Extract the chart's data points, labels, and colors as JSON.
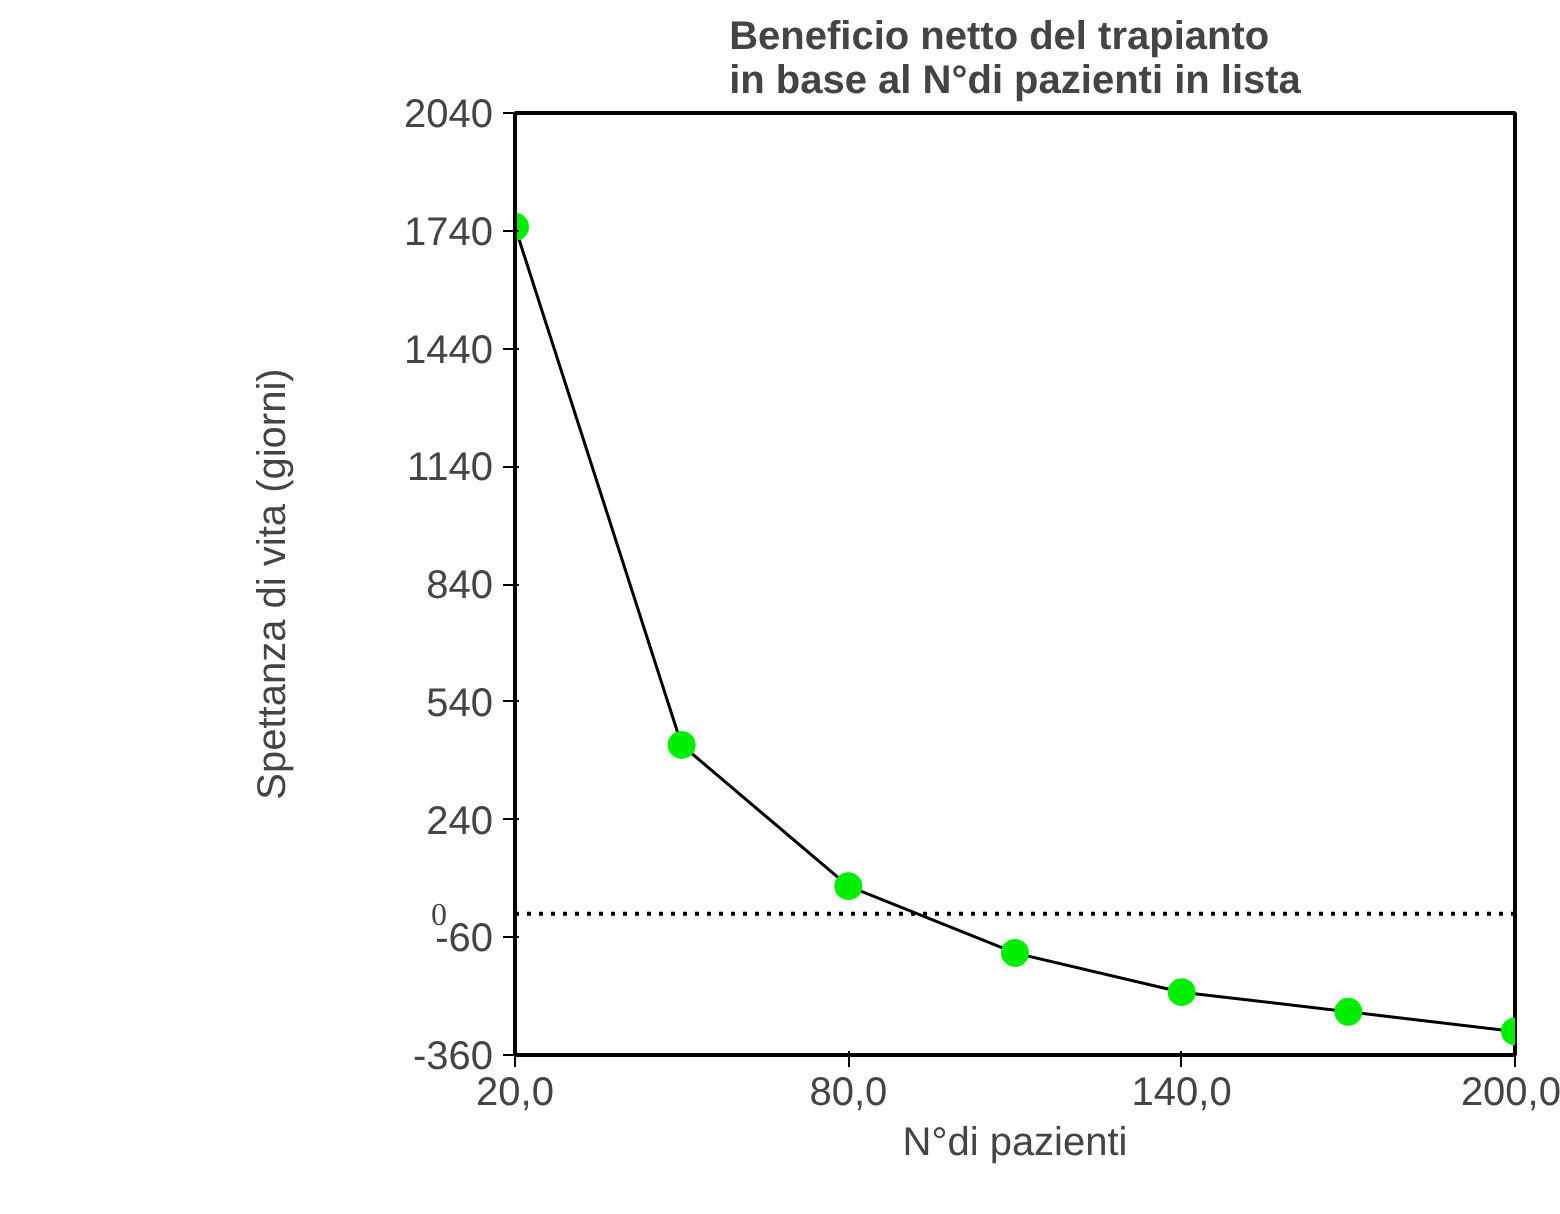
{
  "chart_data": {
    "type": "line",
    "title": "Beneficio netto del trapianto\nin base al N°di pazienti in lista",
    "xlabel": "N°di pazienti",
    "ylabel": "Spettanza di vita (giorni)",
    "x": [
      20,
      50,
      80,
      110,
      140,
      170,
      200
    ],
    "series": [
      {
        "color": "#00ee00",
        "values": [
          1750,
          430,
          70,
          -100,
          -200,
          -250,
          -300
        ]
      }
    ],
    "xlim": [
      20,
      200
    ],
    "xticks": [
      {
        "value": 20,
        "label": "20,0"
      },
      {
        "value": 80,
        "label": "80,0"
      },
      {
        "value": 140,
        "label": "140,0"
      },
      {
        "value": 200,
        "label": "200,0"
      }
    ],
    "ylim": [
      -360,
      2040
    ],
    "yticks": [
      -360,
      -60,
      240,
      540,
      840,
      1140,
      1440,
      1740,
      2040
    ],
    "ref_lines": [
      {
        "axis": "y",
        "value": 0,
        "label": "0",
        "line_style": "dotted"
      }
    ],
    "marker": "circle",
    "line_style": "solid",
    "grid": false
  }
}
